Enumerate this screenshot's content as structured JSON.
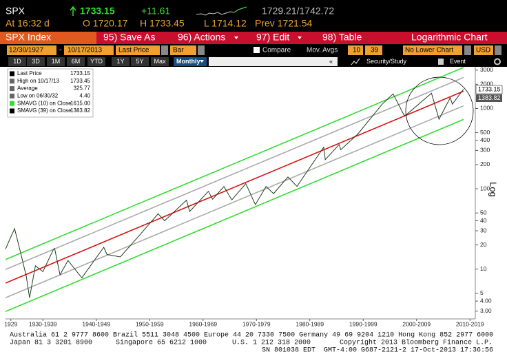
{
  "header": {
    "ticker": "SPX",
    "last": "1733.15",
    "change": "+11.61",
    "range": "1729.21/1742.72",
    "time": "At 16:32 d",
    "open": "O 1720.17",
    "high": "H 1733.45",
    "low": "L 1714.12",
    "prev": "Prev 1721.54"
  },
  "toolbar": {
    "security": "SPX Index",
    "menu": [
      "95) Save As",
      "96) Actions",
      "97) Edit",
      "98) Table"
    ],
    "view": "Logarithmic Chart"
  },
  "controls": {
    "start": "12/30/1927",
    "separator": "-",
    "end": "10/17/2013",
    "field": "Last Price",
    "style": "Bar",
    "compare": "Compare",
    "mov_avgs": "Mov. Avgs",
    "ma1": "10",
    "ma2": "39",
    "lower": "No Lower Chart",
    "currency": "USD"
  },
  "periods": {
    "buttons": [
      "1D",
      "3D",
      "1M",
      "6M",
      "YTD",
      "1Y",
      "5Y",
      "Max"
    ],
    "frequency": "Monthly",
    "collapse": "«",
    "study": "Security/Study",
    "event": "Event"
  },
  "legend": [
    {
      "label": "Last Price",
      "value": "1733.15"
    },
    {
      "label": "High on 10/17/13",
      "value": "1733.45"
    },
    {
      "label": "Average",
      "value": "325.77"
    },
    {
      "label": "Low on 06/30/32",
      "value": "4.40"
    },
    {
      "label": "SMAVG (10) on Close",
      "value": "1615.00"
    },
    {
      "label": "SMAVG (39) on Close",
      "value": "1383.82"
    }
  ],
  "chart": {
    "type": "line",
    "log_scale": true,
    "axis_label": "Log",
    "price_tags": [
      "1733.15",
      "1383.82"
    ],
    "xlim": [
      1928,
      2016
    ],
    "ylim": [
      2.4,
      3300
    ],
    "yticks": [
      3000,
      2000,
      1000,
      500,
      400,
      300,
      200,
      100,
      50,
      40,
      30,
      20,
      10,
      5,
      {
        "value": 4,
        "label": "4.00"
      },
      {
        "value": 3,
        "label": "3.00"
      }
    ],
    "xticks": [
      1929,
      {
        "value": 1935,
        "label": "1930-1939"
      },
      {
        "value": 1945,
        "label": "1940-1949"
      },
      {
        "value": 1955,
        "label": "1950-1959"
      },
      {
        "value": 1965,
        "label": "1960-1969"
      },
      {
        "value": 1975,
        "label": "1970-1979"
      },
      {
        "value": 1985,
        "label": "1980-1989"
      },
      {
        "value": 1995,
        "label": "1990-1999"
      },
      {
        "value": 2005,
        "label": "2000-2009"
      },
      {
        "value": 2015,
        "label": "2010-2019"
      }
    ],
    "series": [
      {
        "color": "#1e3d1e",
        "x": [
          1928.0,
          1928.9,
          1929.7,
          1930.9,
          1931.9,
          1932.5,
          1933.6,
          1935.0,
          1936.9,
          1937.2,
          1938.2,
          1939.7,
          1942.3,
          1946.4,
          1947.0,
          1949.5,
          1953.0,
          1956.6,
          1957.8,
          1961.9,
          1962.5,
          1966.0,
          1966.8,
          1968.9,
          1970.4,
          1973.0,
          1974.8,
          1976.8,
          1978.2,
          1980.9,
          1982.6,
          1987.6,
          1987.9,
          1990.5,
          1990.8,
          1994.0,
          1998.5,
          2000.6,
          2002.7,
          2003.2,
          2007.8,
          2009.2,
          2011.3,
          2011.7,
          2013.8
        ],
        "values": [
          17.7,
          24.4,
          31.9,
          15.3,
          8.1,
          4.4,
          11.0,
          9.3,
          17.2,
          18.1,
          8.5,
          12.8,
          7.8,
          18.7,
          15.2,
          14.2,
          26.0,
          48.8,
          40.0,
          72.0,
          52.3,
          92.9,
          74.0,
          106.5,
          72.7,
          116.0,
          63.5,
          107.0,
          87.0,
          140.5,
          107.1,
          329.8,
          230.3,
          356.0,
          306.1,
          481.6,
          1120.7,
          1517.7,
          815.3,
          848.2,
          1549.4,
          735.1,
          1363.6,
          1131.4,
          1733.15
        ]
      }
    ],
    "channels": [
      {
        "color": "#33dd33",
        "x": [
          1928,
          2013.8
        ],
        "values": [
          13.2,
          3236
        ]
      },
      {
        "color": "#aaaaaa",
        "x": [
          1928,
          2013.8
        ],
        "values": [
          9.9,
          2430
        ]
      },
      {
        "color": "#dd1111",
        "x": [
          1928,
          2013.8
        ],
        "values": [
          6.7,
          1640
        ]
      },
      {
        "color": "#aaaaaa",
        "x": [
          1928,
          2013.8
        ],
        "values": [
          4.4,
          1080
        ]
      },
      {
        "color": "#33dd33",
        "x": [
          1928,
          2013.8
        ],
        "values": [
          2.97,
          730
        ]
      }
    ]
  },
  "footer": {
    "line1": "Australia 61 2 9777 8600 Brazil 5511 3048 4500 Europe 44 20 7330 7500 Germany 49 69 9204 1210 Hong Kong 852 2977 6000",
    "line2": [
      "Japan 81 3 3201 8900",
      "Singapore 65 6212 1000",
      "U.S. 1 212 318 2000",
      "Copyright 2013 Bloomberg Finance L.P."
    ],
    "line3": "SN 801038 EDT  GMT-4:00 G687-2121-2 17-Oct-2013 17:36:56"
  }
}
